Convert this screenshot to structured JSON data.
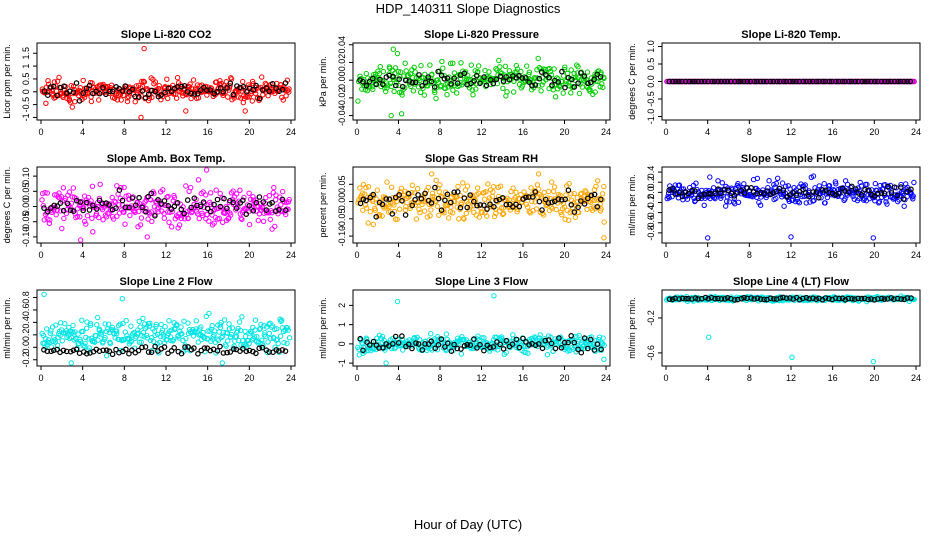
{
  "figure": {
    "title": "HDP_140311  Slope Diagnostics",
    "xlabel": "Hour of Day (UTC)"
  },
  "chart_data": [
    {
      "id": "co2",
      "type": "scatter",
      "title": "Slope Li-820 CO2",
      "ylabel": "Licor ppm per min.",
      "color": "#ff0000",
      "xlim": [
        0,
        24
      ],
      "xticks": [
        0,
        4,
        8,
        12,
        16,
        20,
        24
      ],
      "ylim": [
        -1.1,
        1.9
      ],
      "yticks": [
        -1,
        -0.5,
        0,
        0.5,
        1,
        1.5
      ],
      "yticklabels": [
        "-1",
        "-0.5",
        "0",
        "0.5",
        "1",
        "1.5"
      ],
      "series_center": 0.05,
      "series_spread": 0.28,
      "black_spread": 0.2,
      "outliers": [
        [
          9.9,
          1.68
        ],
        [
          9.6,
          -1.0
        ],
        [
          13.9,
          -0.75
        ],
        [
          19.6,
          -0.75
        ],
        [
          8.3,
          -0.38
        ]
      ]
    },
    {
      "id": "pressure",
      "type": "scatter",
      "title": "Slope Li-820 Pressure",
      "ylabel": "kPa per min.",
      "color": "#00cc00",
      "xlim": [
        0,
        24
      ],
      "xticks": [
        0,
        4,
        8,
        12,
        16,
        20,
        24
      ],
      "ylim": [
        -0.045,
        0.042
      ],
      "yticks": [
        -0.04,
        -0.02,
        0,
        0.02,
        0.04
      ],
      "yticklabels": [
        "-0.04",
        "-0.02",
        "0.00",
        "0.02",
        "0.04"
      ],
      "series_center": 0.0,
      "series_spread": 0.012,
      "black_spread": 0.006,
      "outliers": [
        [
          3.3,
          -0.04
        ],
        [
          3.5,
          0.035
        ],
        [
          4.3,
          -0.038
        ],
        [
          3.9,
          0.03
        ]
      ]
    },
    {
      "id": "temp",
      "type": "scatter",
      "title": "Slope Li-820 Temp.",
      "ylabel": "degrees C per min.",
      "color": "#cc00cc",
      "xlim": [
        0,
        24
      ],
      "xticks": [
        0,
        4,
        8,
        12,
        16,
        20,
        24
      ],
      "ylim": [
        -1.1,
        1.1
      ],
      "yticks": [
        -1,
        -0.5,
        0,
        0.5,
        1
      ],
      "yticklabels": [
        "-1.0",
        "-0.5",
        "0.0",
        "0.5",
        "1.0"
      ],
      "series_center": 0.0,
      "series_spread": 0.0,
      "black_spread": 0.0,
      "outliers": []
    },
    {
      "id": "ambbox",
      "type": "scatter",
      "title": "Slope Amb. Box Temp.",
      "ylabel": "degrees C per min.",
      "color": "#ff00ff",
      "xlim": [
        0,
        24
      ],
      "xticks": [
        0,
        4,
        8,
        12,
        16,
        20,
        24
      ],
      "ylim": [
        -0.12,
        0.13
      ],
      "yticks": [
        -0.1,
        -0.05,
        0,
        0.05,
        0.1
      ],
      "yticklabels": [
        "-0.10",
        "-0.05",
        "0.00",
        "0.05",
        "0.10"
      ],
      "series_center": 0.0,
      "series_spread": 0.04,
      "black_spread": 0.025,
      "outliers": [
        [
          15.9,
          0.12
        ],
        [
          3.8,
          -0.11
        ],
        [
          10.2,
          -0.1
        ]
      ]
    },
    {
      "id": "rh",
      "type": "scatter",
      "title": "Slope Gas Stream RH",
      "ylabel": "percent per min.",
      "color": "#ffa500",
      "xlim": [
        0,
        24
      ],
      "xticks": [
        0,
        4,
        8,
        12,
        16,
        20,
        24
      ],
      "ylim": [
        -0.12,
        0.1
      ],
      "yticks": [
        -0.1,
        -0.05,
        0,
        0.05
      ],
      "yticklabels": [
        "-0.10",
        "-0.05",
        "0.00",
        "0.05"
      ],
      "series_center": 0.0,
      "series_spread": 0.035,
      "black_spread": 0.025,
      "outliers": [
        [
          7.2,
          0.08
        ],
        [
          17.5,
          0.08
        ],
        [
          23.8,
          -0.105
        ]
      ]
    },
    {
      "id": "sampleflow",
      "type": "scatter",
      "title": "Slope Sample Flow",
      "ylabel": "ml/min per min.",
      "color": "#0000ff",
      "xlim": [
        0,
        24
      ],
      "xticks": [
        0,
        4,
        8,
        12,
        16,
        20,
        24
      ],
      "ylim": [
        -1.0,
        0.5
      ],
      "yticks": [
        -0.8,
        -0.6,
        -0.4,
        -0.2,
        0,
        0.2,
        0.4
      ],
      "yticklabels": [
        "-0.8",
        "-0.6",
        "-0.4",
        "-0.2",
        "0.0",
        "0.2",
        "0.4"
      ],
      "series_center": 0.0,
      "series_spread": 0.15,
      "black_spread": 0.08,
      "outliers": [
        [
          4.0,
          -0.9
        ],
        [
          12.0,
          -0.88
        ],
        [
          19.9,
          -0.9
        ],
        [
          4.2,
          0.3
        ]
      ]
    },
    {
      "id": "line2",
      "type": "scatter",
      "title": "Slope Line 2 Flow",
      "ylabel": "ml/min per min.",
      "color": "#00e5e5",
      "xlim": [
        0,
        24
      ],
      "xticks": [
        0,
        4,
        8,
        12,
        16,
        20,
        24
      ],
      "ylim": [
        -0.3,
        0.92
      ],
      "yticks": [
        -0.2,
        0,
        0.2,
        0.4,
        0.6,
        0.8
      ],
      "yticklabels": [
        "-0.2",
        "0.0",
        "0.2",
        "0.4",
        "0.6",
        "0.8"
      ],
      "series_center": 0.2,
      "series_spread": 0.17,
      "black_spread": 0.03,
      "outliers": [
        [
          0.3,
          0.85
        ],
        [
          7.8,
          0.78
        ],
        [
          17.4,
          -0.25
        ],
        [
          2.9,
          -0.25
        ]
      ]
    },
    {
      "id": "line3",
      "type": "scatter",
      "title": "Slope Line 3 Flow",
      "ylabel": "ml/min per min.",
      "color": "#00e5e5",
      "xlim": [
        0,
        24
      ],
      "xticks": [
        0,
        4,
        8,
        12,
        16,
        20,
        24
      ],
      "ylim": [
        -1.15,
        2.8
      ],
      "yticks": [
        -1,
        0,
        1,
        2
      ],
      "yticklabels": [
        "-1",
        "0",
        "1",
        "2"
      ],
      "series_center": 0.0,
      "series_spread": 0.3,
      "black_spread": 0.3,
      "outliers": [
        [
          3.9,
          2.2
        ],
        [
          13.2,
          2.5
        ],
        [
          2.8,
          -1.0
        ],
        [
          23.8,
          -0.8
        ]
      ]
    },
    {
      "id": "line4",
      "type": "scatter",
      "title": "Slope Line 4 (LT) Flow",
      "ylabel": "ml/min per min.",
      "color": "#00e5e5",
      "xlim": [
        0,
        24
      ],
      "xticks": [
        0,
        4,
        8,
        12,
        16,
        20,
        24
      ],
      "ylim": [
        -0.75,
        0.12
      ],
      "yticks": [
        -0.6,
        -0.2
      ],
      "yticklabels": [
        "-0.6",
        "-0.2"
      ],
      "series_center": 0.02,
      "series_spread": 0.015,
      "black_spread": 0.01,
      "outliers": [
        [
          4.1,
          -0.42
        ],
        [
          12.1,
          -0.65
        ],
        [
          19.9,
          -0.7
        ]
      ]
    }
  ]
}
